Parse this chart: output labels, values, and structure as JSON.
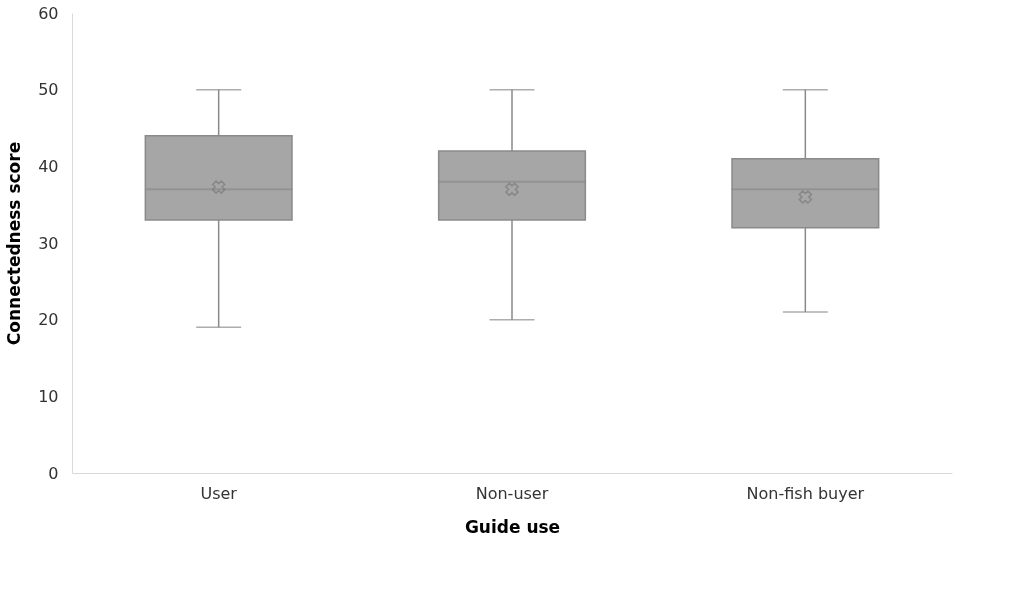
{
  "chart_data": {
    "type": "box",
    "xlabel": "Guide use",
    "ylabel": "Connectedness score",
    "categories": [
      "User",
      "Non-user",
      "Non-fish buyer"
    ],
    "boxes": [
      {
        "low": 19,
        "q1": 33,
        "median": 37,
        "q3": 44,
        "high": 50,
        "mean": 37.3
      },
      {
        "low": 20,
        "q1": 33,
        "median": 38,
        "q3": 42,
        "high": 50,
        "mean": 37
      },
      {
        "low": 21,
        "q1": 32,
        "median": 37,
        "q3": 41,
        "high": 50,
        "mean": 36
      }
    ],
    "color": "#a6a6a6",
    "ylim": [
      0,
      60
    ],
    "yticks": [
      0,
      10,
      20,
      30,
      40,
      50,
      60
    ],
    "grid": false
  }
}
